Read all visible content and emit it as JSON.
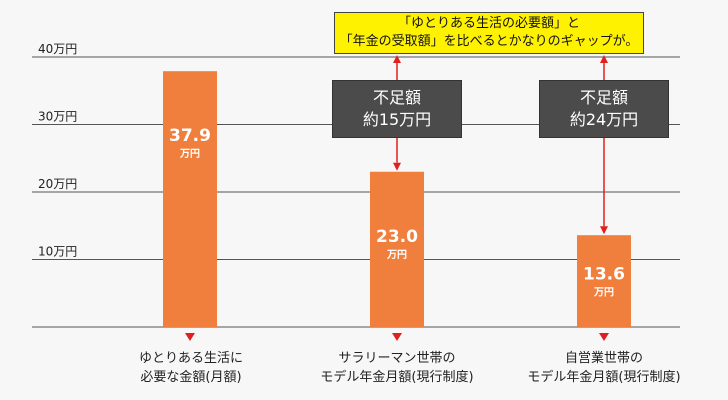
{
  "chart_data": {
    "type": "bar",
    "title": "",
    "xlabel": "",
    "ylabel": "",
    "ylim": [
      0,
      40
    ],
    "y_ticks": [
      {
        "value": 10,
        "label": "10万円"
      },
      {
        "value": 20,
        "label": "20万円"
      },
      {
        "value": 30,
        "label": "30万円"
      },
      {
        "value": 40,
        "label": "40万円"
      }
    ],
    "categories": [
      [
        "ゆとりある生活に",
        "必要な金額(月額)"
      ],
      [
        "サラリーマン世帯の",
        "モデル年金月額(現行制度)"
      ],
      [
        "自営業世帯の",
        "モデル年金月額(現行制度)"
      ]
    ],
    "values": [
      37.9,
      23.0,
      13.6
    ],
    "value_labels": [
      "37.9",
      "23.0",
      "13.6"
    ],
    "value_unit": "万円",
    "bar_color": "#f07f3e",
    "grid": true,
    "annotations": {
      "callout_lines": [
        "「ゆとりある生活の必要額」と",
        "「年金の受取額」を比べるとかなりのギャップが。"
      ],
      "callout_color": "#fff200",
      "gaps": [
        {
          "category_index": 1,
          "lines": [
            "不足額",
            "約15万円"
          ]
        },
        {
          "category_index": 2,
          "lines": [
            "不足額",
            "約24万円"
          ]
        }
      ],
      "arrow_color": "#e0201f",
      "gap_box_color": "#4b4b4b"
    }
  }
}
